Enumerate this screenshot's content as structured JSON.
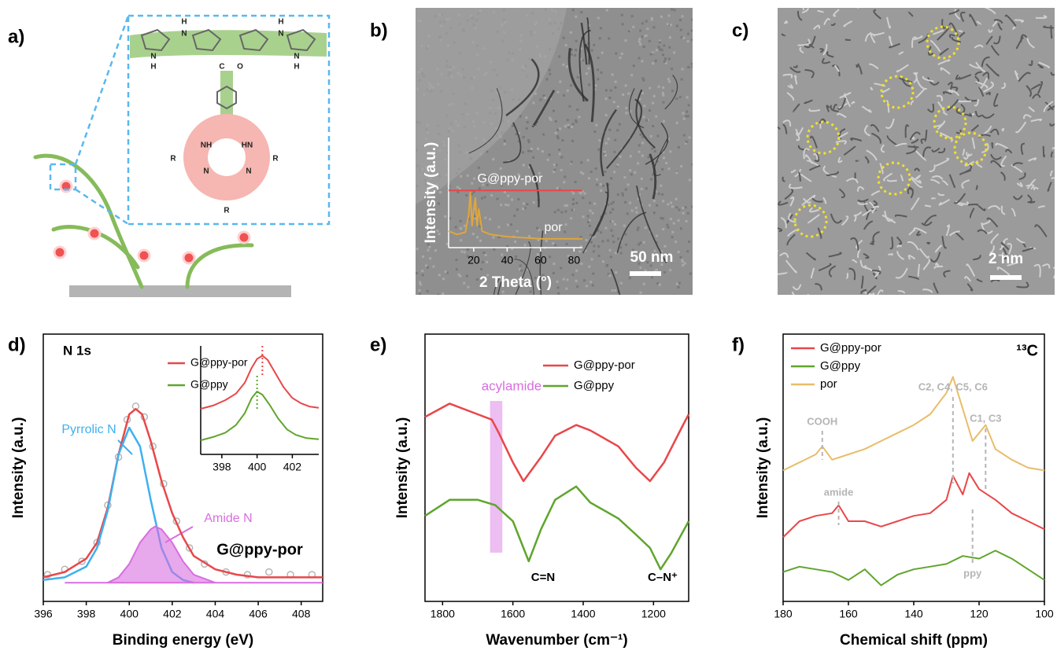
{
  "panel_labels": [
    "a)",
    "b)",
    "c)",
    "d)",
    "e)",
    "f)"
  ],
  "panel_a": {
    "atoms": [
      "H",
      "N",
      "N",
      "H",
      "H",
      "N",
      "N",
      "H",
      "C",
      "O",
      "NH",
      "N",
      "N",
      "HN",
      "R",
      "R",
      "R"
    ]
  },
  "panel_b": {
    "scale_bar": "50 nm"
  },
  "panel_c": {
    "scale_bar": "2 nm"
  },
  "chart_data": [
    {
      "type": "line",
      "xlabel": "2 Theta (°)",
      "ylabel": "Intensity (a.u.)",
      "xlim": [
        5,
        85
      ],
      "ylim": [
        0,
        1
      ],
      "xticks": [
        20,
        40,
        60,
        80
      ],
      "series": [
        {
          "name": "G@ppy-por",
          "color": "#e8474a",
          "mode": "line",
          "x": [
            5,
            85
          ],
          "values": [
            0.52,
            0.52
          ]
        },
        {
          "name": "por",
          "color": "#e0a63c",
          "mode": "line",
          "x": [
            5,
            10,
            15,
            17,
            18,
            19,
            20,
            21,
            22,
            23,
            25,
            30,
            40,
            50,
            60,
            70,
            85
          ],
          "values": [
            0.15,
            0.12,
            0.14,
            0.3,
            0.5,
            0.2,
            0.35,
            0.45,
            0.2,
            0.35,
            0.15,
            0.12,
            0.1,
            0.09,
            0.08,
            0.08,
            0.08
          ]
        }
      ]
    },
    {
      "type": "line",
      "title": "N 1s",
      "xlabel": "Binding energy (eV)",
      "ylabel": "Intensity (a.u.)",
      "xlim": [
        396,
        409
      ],
      "ylim": [
        0,
        1
      ],
      "xticks": [
        396,
        398,
        400,
        402,
        404,
        406,
        408
      ],
      "series": [
        {
          "color": "#b5b5b5",
          "mode": "markers",
          "x": [
            396.2,
            397,
            397.8,
            398.5,
            399,
            399.5,
            399.9,
            400.3,
            400.7,
            401.1,
            401.6,
            402.2,
            402.8,
            403.5,
            404.5,
            405.5,
            406.5,
            407.5,
            408.5
          ],
          "values": [
            0.1,
            0.12,
            0.15,
            0.22,
            0.36,
            0.54,
            0.68,
            0.73,
            0.69,
            0.58,
            0.44,
            0.3,
            0.2,
            0.14,
            0.11,
            0.1,
            0.11,
            0.1,
            0.1
          ]
        },
        {
          "color": "#e8474a",
          "mode": "line",
          "x": [
            396,
            397,
            398,
            398.5,
            399,
            399.5,
            400,
            400.3,
            400.6,
            401,
            401.5,
            402,
            402.5,
            403,
            404,
            405,
            406,
            407,
            408,
            409
          ],
          "values": [
            0.09,
            0.11,
            0.16,
            0.22,
            0.35,
            0.55,
            0.7,
            0.72,
            0.7,
            0.6,
            0.45,
            0.33,
            0.24,
            0.17,
            0.12,
            0.1,
            0.09,
            0.09,
            0.09,
            0.09
          ]
        },
        {
          "color": "#3fb0ef",
          "mode": "line",
          "x": [
            396,
            397,
            398,
            398.5,
            399,
            399.5,
            400,
            400.5,
            401,
            401.5,
            402,
            402.5,
            403
          ],
          "values": [
            0.08,
            0.09,
            0.13,
            0.2,
            0.34,
            0.55,
            0.65,
            0.58,
            0.38,
            0.2,
            0.11,
            0.08,
            0.07
          ]
        },
        {
          "color": "#d86ee0",
          "mode": "area",
          "x": [
            397,
            399,
            399.5,
            400,
            400.5,
            401,
            401.2,
            401.5,
            402,
            402.5,
            403,
            404,
            409
          ],
          "values": [
            0.07,
            0.07,
            0.09,
            0.14,
            0.22,
            0.27,
            0.28,
            0.27,
            0.22,
            0.15,
            0.1,
            0.07,
            0.07
          ]
        }
      ],
      "annotations": [
        {
          "text": "Pyrrolic N"
        },
        {
          "text": "Amide N"
        },
        {
          "text": "G@ppy-por"
        }
      ]
    },
    {
      "type": "line",
      "xlim": [
        396.8,
        403.5
      ],
      "ylim": [
        0,
        1
      ],
      "xticks": [
        398,
        400,
        402
      ],
      "legend": true,
      "series": [
        {
          "name": "G@ppy-por",
          "color": "#e8474a",
          "mode": "line",
          "peak": 400.3,
          "x": [
            396.8,
            397.5,
            398.2,
            398.8,
            399.3,
            399.7,
            400,
            400.3,
            400.6,
            401,
            401.5,
            402,
            402.5,
            403,
            403.5
          ],
          "values": [
            0.42,
            0.45,
            0.5,
            0.56,
            0.66,
            0.8,
            0.88,
            0.91,
            0.87,
            0.76,
            0.62,
            0.52,
            0.47,
            0.44,
            0.43
          ]
        },
        {
          "name": "G@ppy",
          "color": "#5fa52d",
          "mode": "line",
          "peak": 400.0,
          "x": [
            396.8,
            397.5,
            398.2,
            398.8,
            399.3,
            399.7,
            400,
            400.3,
            400.7,
            401.2,
            401.7,
            402.2,
            402.8,
            403.5
          ],
          "values": [
            0.13,
            0.16,
            0.2,
            0.27,
            0.38,
            0.52,
            0.58,
            0.55,
            0.46,
            0.33,
            0.23,
            0.18,
            0.15,
            0.14
          ]
        }
      ]
    },
    {
      "type": "line",
      "xlabel": "Wavenumber (cm⁻¹)",
      "ylabel": "Intensity (a.u.)",
      "xlim": [
        1850,
        1100
      ],
      "ylim": [
        0,
        1
      ],
      "xticks": [
        1800,
        1600,
        1400,
        1200
      ],
      "legend": true,
      "band": [
        1665,
        1630
      ],
      "series": [
        {
          "name": "G@ppy-por",
          "color": "#e8474a",
          "mode": "line",
          "x": [
            1850,
            1780,
            1700,
            1660,
            1640,
            1600,
            1570,
            1520,
            1480,
            1420,
            1380,
            1300,
            1250,
            1210,
            1170,
            1120,
            1100
          ],
          "values": [
            0.69,
            0.74,
            0.7,
            0.68,
            0.63,
            0.52,
            0.45,
            0.54,
            0.62,
            0.66,
            0.64,
            0.58,
            0.5,
            0.45,
            0.52,
            0.65,
            0.7
          ]
        },
        {
          "name": "G@ppy",
          "color": "#5fa52d",
          "mode": "line",
          "x": [
            1850,
            1780,
            1700,
            1650,
            1600,
            1555,
            1520,
            1480,
            1420,
            1380,
            1300,
            1250,
            1210,
            1180,
            1150,
            1100
          ],
          "values": [
            0.32,
            0.38,
            0.38,
            0.36,
            0.3,
            0.15,
            0.27,
            0.38,
            0.43,
            0.37,
            0.31,
            0.25,
            0.2,
            0.12,
            0.18,
            0.3
          ]
        }
      ],
      "annotations": [
        {
          "text": "acylamide"
        },
        {
          "text": "C=N"
        },
        {
          "text": "C–N⁺"
        }
      ]
    },
    {
      "type": "line",
      "xlabel": "Chemical shift (ppm)",
      "ylabel": "Intensity (a.u.)",
      "xlim": [
        180,
        100
      ],
      "ylim": [
        0,
        1
      ],
      "xticks": [
        180,
        160,
        140,
        120,
        100
      ],
      "legend": true,
      "series": [
        {
          "name": "G@ppy-por",
          "color": "#e8474a",
          "mode": "line",
          "x": [
            180,
            175,
            170,
            165,
            163,
            160,
            155,
            150,
            145,
            140,
            135,
            130,
            128,
            125,
            123,
            120,
            115,
            110,
            105,
            100
          ],
          "values": [
            0.24,
            0.3,
            0.32,
            0.33,
            0.36,
            0.3,
            0.3,
            0.28,
            0.3,
            0.32,
            0.33,
            0.38,
            0.47,
            0.4,
            0.48,
            0.42,
            0.38,
            0.33,
            0.3,
            0.27
          ]
        },
        {
          "name": "G@ppy",
          "color": "#5fa52d",
          "mode": "line",
          "x": [
            180,
            175,
            170,
            165,
            160,
            155,
            150,
            145,
            140,
            135,
            130,
            125,
            120,
            115,
            110,
            105,
            100
          ],
          "values": [
            0.11,
            0.13,
            0.12,
            0.11,
            0.08,
            0.12,
            0.06,
            0.1,
            0.12,
            0.13,
            0.14,
            0.17,
            0.16,
            0.19,
            0.16,
            0.12,
            0.08
          ]
        },
        {
          "name": "por",
          "color": "#e8bd6a",
          "mode": "line",
          "x": [
            180,
            175,
            170,
            168,
            165,
            160,
            155,
            150,
            145,
            140,
            135,
            130,
            128,
            125,
            122,
            118,
            115,
            110,
            105,
            100
          ],
          "values": [
            0.49,
            0.52,
            0.55,
            0.58,
            0.53,
            0.55,
            0.57,
            0.6,
            0.63,
            0.66,
            0.7,
            0.78,
            0.84,
            0.72,
            0.6,
            0.66,
            0.57,
            0.53,
            0.5,
            0.49
          ]
        }
      ],
      "nucleus": "¹³C",
      "annotations": [
        {
          "text": "COOH",
          "x": 168
        },
        {
          "text": "C2, C4, C5, C6",
          "x": 128
        },
        {
          "text": "C1, C3",
          "x": 118
        },
        {
          "text": "amide",
          "x": 163
        },
        {
          "text": "ppy",
          "x": 122
        }
      ]
    }
  ]
}
